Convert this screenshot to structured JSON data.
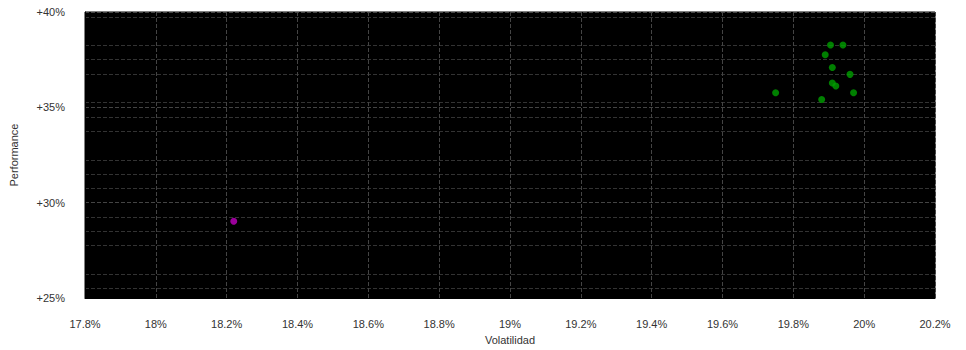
{
  "chart_data": {
    "type": "scatter",
    "x_label": "Volatilidad",
    "y_label": "Performance",
    "series": [
      {
        "color": "#c000c0",
        "values": [
          [
            18.22,
            29.03
          ]
        ]
      },
      {
        "color": "#00a000",
        "values": [
          [
            19.905,
            38.27
          ],
          [
            19.94,
            38.27
          ],
          [
            19.89,
            37.76
          ],
          [
            19.91,
            37.09
          ],
          [
            19.96,
            36.73
          ],
          [
            19.91,
            36.28
          ],
          [
            19.92,
            36.12
          ],
          [
            19.75,
            35.77
          ],
          [
            19.97,
            35.77
          ],
          [
            19.88,
            35.41
          ]
        ]
      }
    ],
    "xlim": [
      17.8,
      20.2
    ],
    "xticks": [
      {
        "value": 17.8,
        "label": "17.8%"
      },
      {
        "value": 18,
        "label": "18%"
      },
      {
        "value": 18.2,
        "label": "18.2%"
      },
      {
        "value": 18.4,
        "label": "18.4%"
      },
      {
        "value": 18.6,
        "label": "18.6%"
      },
      {
        "value": 18.8,
        "label": "18.8%"
      },
      {
        "value": 19,
        "label": "19%"
      },
      {
        "value": 19.2,
        "label": "19.2%"
      },
      {
        "value": 19.4,
        "label": "19.4%"
      },
      {
        "value": 19.6,
        "label": "19.6%"
      },
      {
        "value": 19.8,
        "label": "19.8%"
      },
      {
        "value": 20,
        "label": "20%"
      },
      {
        "value": 20.2,
        "label": "20.2%"
      }
    ],
    "ylim": [
      25,
      40
    ],
    "yticks": [
      {
        "value": 25,
        "label": "+25%"
      },
      {
        "value": 30,
        "label": "+30%"
      },
      {
        "value": 35,
        "label": "+35%"
      },
      {
        "value": 40,
        "label": "+40%"
      }
    ],
    "grid": true
  }
}
